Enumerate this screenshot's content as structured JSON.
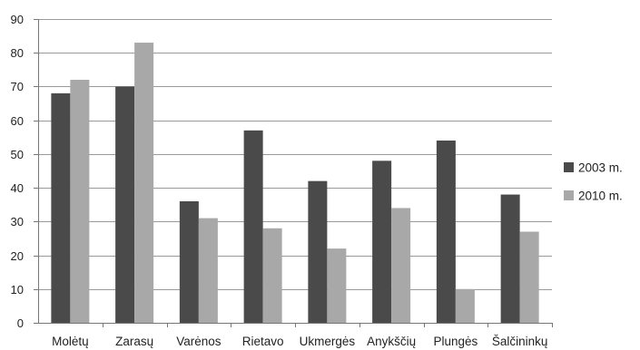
{
  "chart_data": {
    "type": "bar",
    "categories": [
      "Molėtų",
      "Zarasų",
      "Varėnos",
      "Rietavo",
      "Ukmergės",
      "Anykščių",
      "Plungės",
      "Šalčininkų"
    ],
    "series": [
      {
        "name": "2003 m.",
        "values": [
          68,
          70,
          36,
          57,
          42,
          48,
          54,
          38
        ],
        "color": "#4a4a4a"
      },
      {
        "name": "2010 m.",
        "values": [
          72,
          83,
          31,
          28,
          22,
          34,
          10,
          27
        ],
        "color": "#a8a8a8"
      }
    ],
    "yticks": [
      "0",
      "10",
      "20",
      "30",
      "40",
      "50",
      "60",
      "70",
      "80",
      "90"
    ],
    "ylim": [
      0,
      90
    ],
    "grid": true,
    "legend": "right",
    "colors": {
      "gridline": "#9a9a9a",
      "axis": "#777777"
    }
  }
}
